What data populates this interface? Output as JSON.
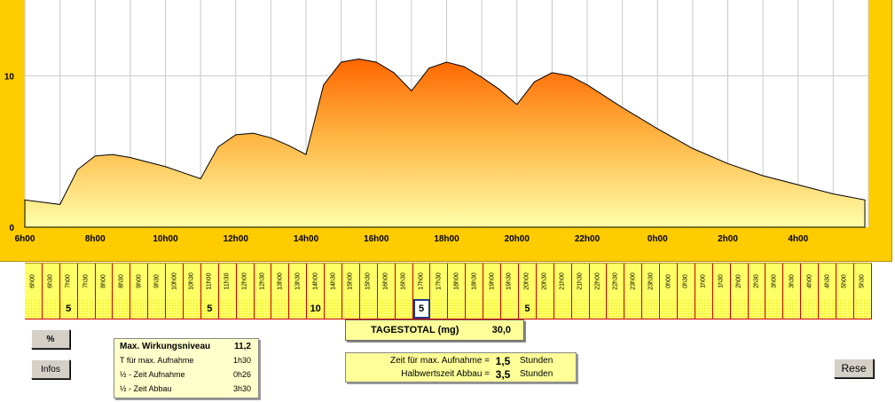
{
  "chart_data": {
    "type": "area",
    "x_tick_labels": [
      "6h00",
      "8h00",
      "10h00",
      "12h00",
      "14h00",
      "16h00",
      "18h00",
      "20h00",
      "22h00",
      "0h00",
      "2h00",
      "4h00"
    ],
    "y_tick_labels": [
      "0",
      "10"
    ],
    "ylim": [
      0,
      15
    ],
    "xlim_hours": [
      6,
      30
    ],
    "grid": true,
    "x": [
      6,
      7,
      7.5,
      8,
      8.5,
      9,
      9.5,
      10,
      10.5,
      11,
      11.5,
      12,
      12.5,
      13,
      13.5,
      14,
      14.5,
      15,
      15.5,
      16,
      16.5,
      17,
      17.5,
      18,
      18.5,
      19,
      19.5,
      20,
      20.5,
      21,
      21.5,
      22,
      23,
      24,
      25,
      26,
      27,
      28,
      29,
      29.9
    ],
    "values": [
      1.8,
      1.5,
      3.8,
      4.7,
      4.8,
      4.6,
      4.3,
      4.0,
      3.6,
      3.2,
      5.3,
      6.1,
      6.2,
      5.9,
      5.4,
      4.8,
      9.4,
      10.9,
      11.1,
      10.9,
      10.2,
      9.0,
      10.5,
      10.9,
      10.6,
      9.9,
      9.1,
      8.1,
      9.6,
      10.2,
      10.0,
      9.4,
      7.9,
      6.5,
      5.2,
      4.2,
      3.4,
      2.8,
      2.2,
      1.8
    ],
    "area_color_top": "#ff6600",
    "area_color_bottom": "#ffffaa",
    "frame_color": "#ffcc00"
  },
  "hours": [
    "6h00",
    "6h30",
    "7h00",
    "7h30",
    "8h00",
    "8h30",
    "9h00",
    "9h30",
    "10h00",
    "10h30",
    "11h00",
    "11h30",
    "12h00",
    "12h30",
    "13h00",
    "13h30",
    "14h00",
    "14h30",
    "15h00",
    "15h30",
    "16h00",
    "16h30",
    "17h00",
    "17h30",
    "18h00",
    "18h30",
    "19h00",
    "19h30",
    "20h00",
    "20h30",
    "21h00",
    "21h30",
    "22h00",
    "22h30",
    "23h00",
    "23h30",
    "0h00",
    "0h30",
    "1h00",
    "1h30",
    "2h00",
    "2h30",
    "3h00",
    "3h30",
    "4h00",
    "4h30",
    "5h00",
    "5h30"
  ],
  "doses": [
    "",
    "",
    "5",
    "",
    "",
    "",
    "",
    "",
    "",
    "",
    "5",
    "",
    "",
    "",
    "",
    "",
    "10",
    "",
    "",
    "",
    "",
    "",
    "5",
    "",
    "",
    "",
    "",
    "",
    "5",
    "",
    "",
    "",
    "",
    "",
    "",
    "",
    "",
    "",
    "",
    "",
    "",
    "",
    "",
    "",
    "",
    "",
    "",
    ""
  ],
  "selected_dose_index": 22,
  "total": {
    "label": "TAGESTOTAL (mg)",
    "value": "30,0"
  },
  "buttons": {
    "percent": "%",
    "infos": "Infos",
    "reset": "Rese"
  },
  "stats": [
    {
      "label": "Max. Wirkungsniveau",
      "value": "11,2"
    },
    {
      "label": "T für max. Aufnahme",
      "value": "1h30"
    },
    {
      "label": "½ - Zeit Aufnahme",
      "value": "0h26"
    },
    {
      "label": "½ - Zeit Abbau",
      "value": "3h30"
    }
  ],
  "params": [
    {
      "label": "Zeit für max. Aufnahme =",
      "value": "1,5",
      "unit": "Stunden"
    },
    {
      "label": "Halbwertszeit Abbau =",
      "value": "3,5",
      "unit": "Stunden"
    }
  ]
}
